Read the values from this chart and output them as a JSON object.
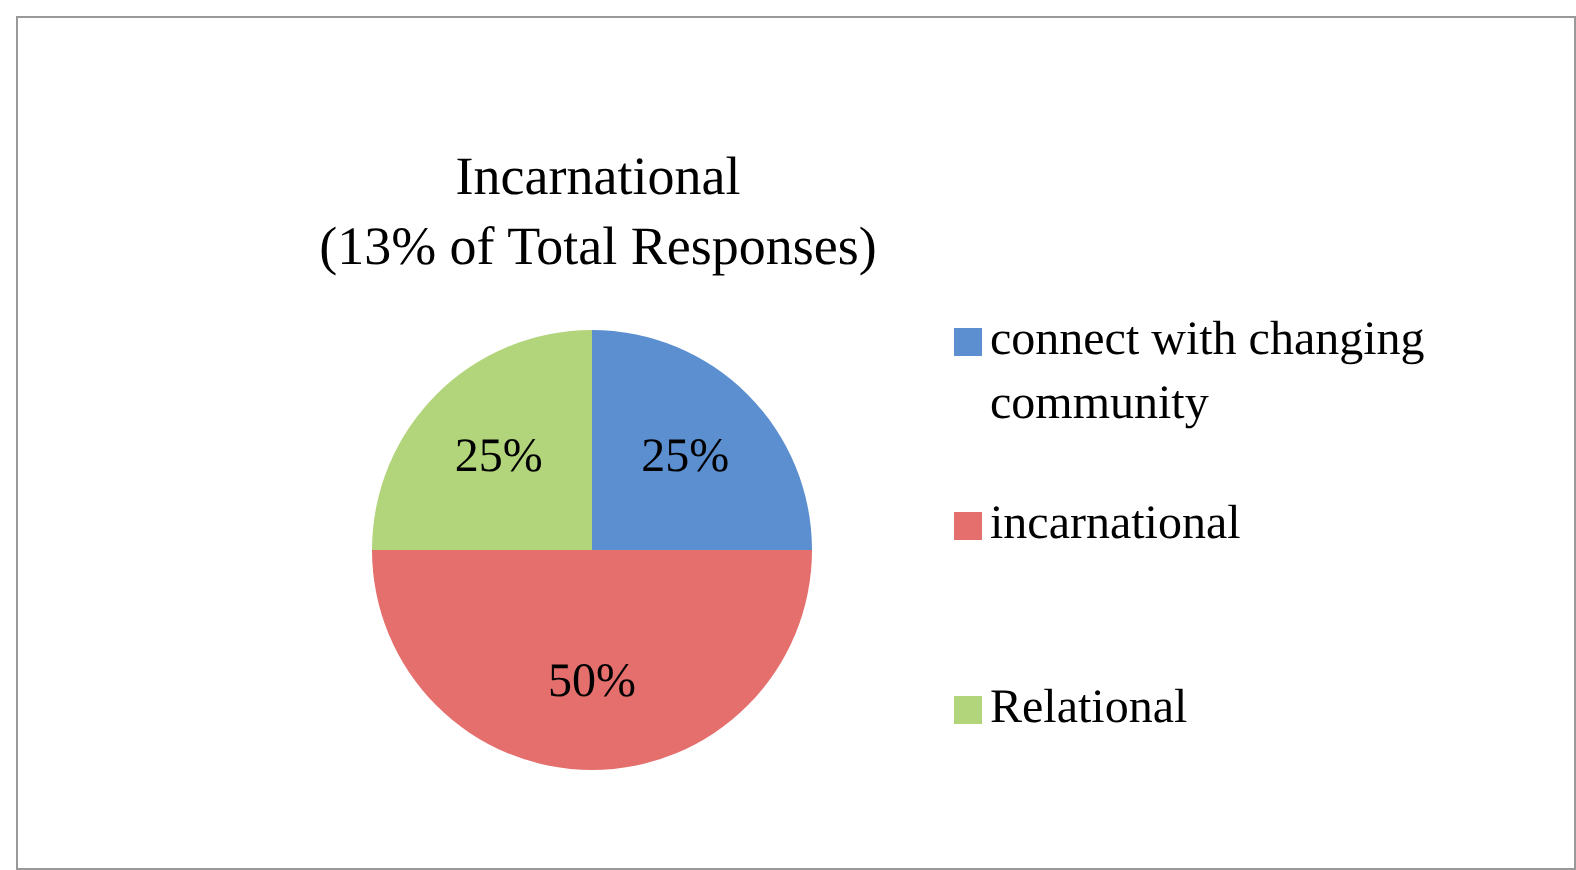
{
  "chart_data": {
    "type": "pie",
    "title": "Incarnational\n(13% of Total Responses)",
    "categories": [
      "connect with changing community",
      "incarnational",
      "Relational"
    ],
    "values": [
      25,
      50,
      25
    ],
    "colors": [
      "#5b8fd0",
      "#e46f6d",
      "#b2d47a"
    ],
    "value_labels": [
      "25%",
      "50%",
      "25%"
    ],
    "legend": "right"
  }
}
